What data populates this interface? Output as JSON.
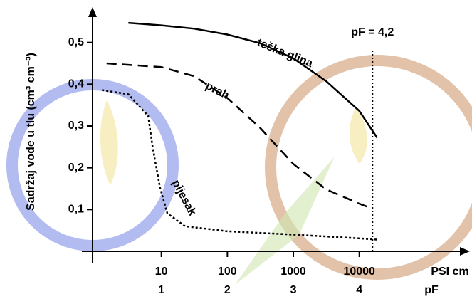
{
  "chart_data": {
    "type": "line",
    "y_label": "Sadržaj vode u tlu (cm³ cm⁻³)",
    "x_label": "PSI cm",
    "x2_label": "pF",
    "xlim": [
      0,
      5.6
    ],
    "ylim": [
      0,
      0.6
    ],
    "xticks": [
      {
        "value": 1,
        "label": "10"
      },
      {
        "value": 2,
        "label": "100"
      },
      {
        "value": 3,
        "label": "1000"
      },
      {
        "value": 4,
        "label": "10000"
      }
    ],
    "x2ticks": [
      1,
      2,
      3,
      4
    ],
    "yticks": [
      {
        "value": 0.1,
        "label": "0,1"
      },
      {
        "value": 0.2,
        "label": "0,2"
      },
      {
        "value": 0.3,
        "label": "0,3"
      },
      {
        "value": 0.4,
        "label": "0,4"
      },
      {
        "value": 0.5,
        "label": "0,5"
      }
    ],
    "vline": {
      "value": 4.2,
      "label": "pF = 4,2"
    },
    "series": [
      {
        "name": "teška glina",
        "color": "#000000",
        "linestyle": "solid",
        "x": [
          0.5,
          1,
          1.5,
          2,
          2.5,
          3,
          3.5,
          4,
          4.27
        ],
        "values": [
          0.547,
          0.541,
          0.533,
          0.519,
          0.498,
          0.462,
          0.407,
          0.336,
          0.272
        ]
      },
      {
        "name": "prah",
        "color": "#000000",
        "linestyle": "dashed",
        "x": [
          0.17,
          1,
          1.5,
          2,
          2.5,
          3,
          3.5,
          4,
          4.2
        ],
        "values": [
          0.45,
          0.441,
          0.419,
          0.367,
          0.295,
          0.209,
          0.148,
          0.114,
          0.102
        ]
      },
      {
        "name": "pijesak",
        "color": "#000000",
        "linestyle": "dotted",
        "x": [
          0.1,
          0.5,
          0.8,
          0.87,
          0.98,
          1.09,
          1.36,
          2,
          3,
          4,
          4.27
        ],
        "values": [
          0.386,
          0.376,
          0.324,
          0.247,
          0.152,
          0.091,
          0.06,
          0.048,
          0.04,
          0.031,
          0.028
        ]
      }
    ]
  }
}
